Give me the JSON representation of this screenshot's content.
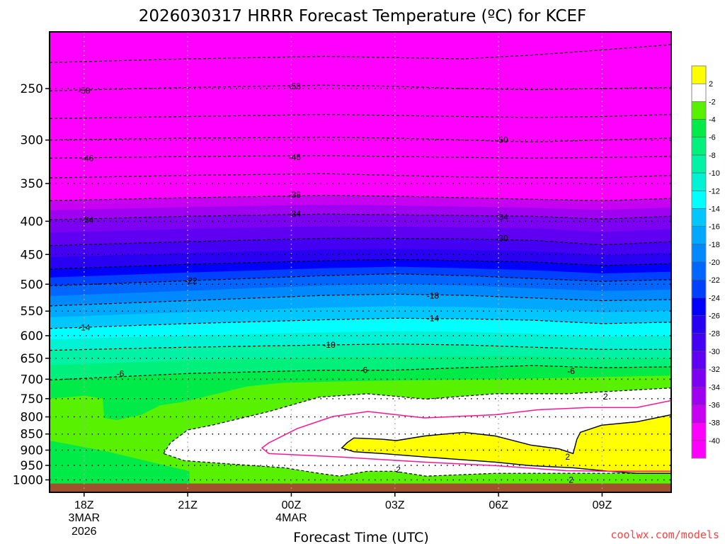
{
  "chart_data": {
    "type": "heatmap",
    "subtype": "filled-contour time-height cross-section",
    "title": "2026030317 HRRR Forecast Temperature (ºC) for KCEF",
    "xlabel": "Forecast Time (UTC)",
    "ylabel": "",
    "x_units": "hours after 17Z 3 Mar 2026",
    "xlim": [
      0,
      18
    ],
    "y_units": "hPa",
    "ylim": [
      1045,
      204.5
    ],
    "y_scale": "log",
    "grid": true,
    "legend": "colorbar-right",
    "x_ticks": [
      {
        "h": 1,
        "label": "18Z",
        "sub1": "3MAR",
        "sub2": "2026"
      },
      {
        "h": 4,
        "label": "21Z"
      },
      {
        "h": 7,
        "label": "00Z",
        "sub1": "4MAR"
      },
      {
        "h": 10,
        "label": "03Z"
      },
      {
        "h": 13,
        "label": "06Z"
      },
      {
        "h": 16,
        "label": "09Z"
      }
    ],
    "y_ticks": [
      250,
      300,
      350,
      400,
      450,
      500,
      550,
      600,
      650,
      700,
      750,
      800,
      850,
      900,
      950,
      1000
    ],
    "colorbar": {
      "levels": [
        "2",
        "-2",
        "-4",
        "-6",
        "-8",
        "-10",
        "-12",
        "-14",
        "-16",
        "-18",
        "-20",
        "-22",
        "-24",
        "-26",
        "-28",
        "-30",
        "-32",
        "-34",
        "-36",
        "-38",
        "-40"
      ],
      "colors": [
        "#ffff00",
        "#ffffff",
        "#58f200",
        "#00ea48",
        "#00f07c",
        "#00f2a4",
        "#00f2d4",
        "#00ffff",
        "#00c8ff",
        "#00a8ff",
        "#0088ff",
        "#0066ff",
        "#0040ff",
        "#0000ff",
        "#2800f2",
        "#4400f2",
        "#6000f2",
        "#7c00f2",
        "#a000f2",
        "#c800f2",
        "#ff00ff",
        "#ff00ff"
      ]
    },
    "ground_pressure": 1013,
    "ground_color": "#a0522d",
    "isotherm_times": [
      0,
      4,
      8,
      10,
      12,
      14,
      16,
      18
    ],
    "isotherms": [
      {
        "t": -62,
        "p": [
          228,
          225,
          223,
          224,
          225,
          222,
          218,
          214
        ]
      },
      {
        "t": -58,
        "p": [
          252,
          249,
          247,
          248,
          250,
          251,
          250,
          249
        ]
      },
      {
        "t": -54,
        "p": [
          278,
          276,
          274,
          275,
          276,
          277,
          276,
          274
        ]
      },
      {
        "t": -50,
        "p": [
          300,
          298,
          297,
          298,
          300,
          302,
          300,
          298
        ]
      },
      {
        "t": -46,
        "p": [
          320,
          318,
          317,
          318,
          319,
          320,
          319,
          318
        ]
      },
      {
        "t": -42,
        "p": [
          343,
          340,
          338,
          340,
          342,
          343,
          343,
          340
        ]
      },
      {
        "t": -38,
        "p": [
          372,
          368,
          365,
          366,
          368,
          370,
          372,
          369
        ]
      },
      {
        "t": -34,
        "p": [
          398,
          393,
          390,
          391,
          392,
          393,
          397,
          393
        ]
      },
      {
        "t": -30,
        "p": [
          436,
          430,
          425,
          425,
          426,
          428,
          435,
          430
        ]
      },
      {
        "t": -26,
        "p": [
          474,
          466,
          460,
          458,
          460,
          462,
          468,
          465
        ]
      },
      {
        "t": -22,
        "p": [
          503,
          494,
          485,
          482,
          485,
          490,
          495,
          492
        ]
      },
      {
        "t": -18,
        "p": [
          540,
          530,
          520,
          518,
          520,
          525,
          530,
          528
        ]
      },
      {
        "t": -14,
        "p": [
          585,
          575,
          567,
          564,
          565,
          568,
          575,
          572
        ]
      },
      {
        "t": -10,
        "p": [
          632,
          625,
          620,
          618,
          620,
          625,
          630,
          630
        ]
      },
      {
        "t": -6,
        "p": [
          702,
          686,
          678,
          678,
          672,
          667,
          672,
          670
        ]
      }
    ],
    "isotherm_minus4": [
      [
        0,
        750
      ],
      [
        1.02,
        742
      ],
      [
        1.54,
        750
      ],
      [
        1.58,
        803
      ],
      [
        1.95,
        809
      ],
      [
        2.66,
        794
      ],
      [
        3.2,
        768
      ],
      [
        3.89,
        758
      ],
      [
        5.74,
        718
      ],
      [
        6.76,
        709
      ],
      [
        9.22,
        704
      ],
      [
        13,
        700
      ],
      [
        18,
        691
      ]
    ],
    "low_cold_pocket": [
      [
        0,
        870
      ],
      [
        1.7,
        905
      ],
      [
        4.05,
        970
      ],
      [
        4.05,
        1013
      ],
      [
        0,
        1013
      ]
    ],
    "warm_region_above_minus2": [
      [
        3.3,
        911
      ],
      [
        3.5,
        877
      ],
      [
        4.0,
        838
      ],
      [
        4.7,
        824
      ],
      [
        6.35,
        785
      ],
      [
        7.8,
        746
      ],
      [
        9.2,
        737
      ],
      [
        10.9,
        751
      ],
      [
        12.9,
        737
      ],
      [
        15,
        737
      ],
      [
        18,
        722
      ],
      [
        18,
        977
      ],
      [
        15,
        977
      ],
      [
        12.9,
        977
      ],
      [
        10.9,
        987
      ],
      [
        10,
        970
      ],
      [
        9.2,
        970
      ],
      [
        8.4,
        987
      ],
      [
        7.8,
        977
      ],
      [
        6.8,
        958
      ],
      [
        5.3,
        946
      ],
      [
        3.9,
        934
      ]
    ],
    "warm_region_above_2": [
      [
        8.46,
        893
      ],
      [
        8.61,
        877
      ],
      [
        8.81,
        862
      ],
      [
        9.63,
        866
      ],
      [
        10.04,
        870
      ],
      [
        10.86,
        856
      ],
      [
        11.99,
        845
      ],
      [
        12.91,
        856
      ],
      [
        13.93,
        884
      ],
      [
        14.75,
        896
      ],
      [
        15.16,
        911
      ],
      [
        15.27,
        866
      ],
      [
        15.37,
        845
      ],
      [
        15.98,
        824
      ],
      [
        17.0,
        814
      ],
      [
        18,
        794
      ],
      [
        18,
        977
      ],
      [
        17,
        977
      ],
      [
        16.19,
        970
      ],
      [
        15.16,
        958
      ],
      [
        13.93,
        951
      ],
      [
        12.91,
        939
      ],
      [
        10.86,
        922
      ],
      [
        9.63,
        911
      ],
      [
        8.81,
        905
      ]
    ],
    "freezing_line": [
      [
        18,
        755
      ],
      [
        17,
        774
      ],
      [
        15.57,
        774
      ],
      [
        14.14,
        780
      ],
      [
        12.91,
        794
      ],
      [
        10.86,
        803
      ],
      [
        9.22,
        785
      ],
      [
        8.2,
        799
      ],
      [
        7.17,
        834
      ],
      [
        6.35,
        877
      ],
      [
        6.15,
        893
      ],
      [
        6.35,
        911
      ],
      [
        8.4,
        922
      ],
      [
        10.86,
        939
      ],
      [
        12.91,
        951
      ],
      [
        14.96,
        968
      ],
      [
        16.19,
        970
      ],
      [
        18,
        970
      ]
    ],
    "contour_labels": [
      {
        "h": 1.0,
        "p": 252,
        "text": "-58"
      },
      {
        "h": 7.1,
        "p": 248,
        "text": "-58"
      },
      {
        "h": 13.1,
        "p": 300,
        "text": "-50"
      },
      {
        "h": 1.1,
        "p": 320,
        "text": "-46"
      },
      {
        "h": 7.1,
        "p": 319,
        "text": "-46"
      },
      {
        "h": 7.1,
        "p": 364,
        "text": "-38"
      },
      {
        "h": 1.1,
        "p": 398,
        "text": "-34"
      },
      {
        "h": 7.1,
        "p": 390,
        "text": "-34"
      },
      {
        "h": 13.1,
        "p": 394,
        "text": "-34"
      },
      {
        "h": 13.1,
        "p": 425,
        "text": "-30"
      },
      {
        "h": 4.1,
        "p": 494,
        "text": "-22"
      },
      {
        "h": 11.1,
        "p": 521,
        "text": "-18"
      },
      {
        "h": 1.0,
        "p": 583,
        "text": "-14"
      },
      {
        "h": 11.1,
        "p": 564,
        "text": "-14"
      },
      {
        "h": 8.1,
        "p": 620,
        "text": "-10"
      },
      {
        "h": 2.05,
        "p": 686,
        "text": "-6"
      },
      {
        "h": 9.1,
        "p": 678,
        "text": "-6"
      },
      {
        "h": 15.1,
        "p": 680,
        "text": "-6"
      },
      {
        "h": 16.1,
        "p": 745,
        "text": "2"
      },
      {
        "h": 15.0,
        "p": 922,
        "text": "2"
      },
      {
        "h": 10.1,
        "p": 964,
        "text": "2"
      },
      {
        "h": 15.1,
        "p": 1000,
        "text": "2"
      }
    ]
  },
  "credit": "coolwx.com/models"
}
